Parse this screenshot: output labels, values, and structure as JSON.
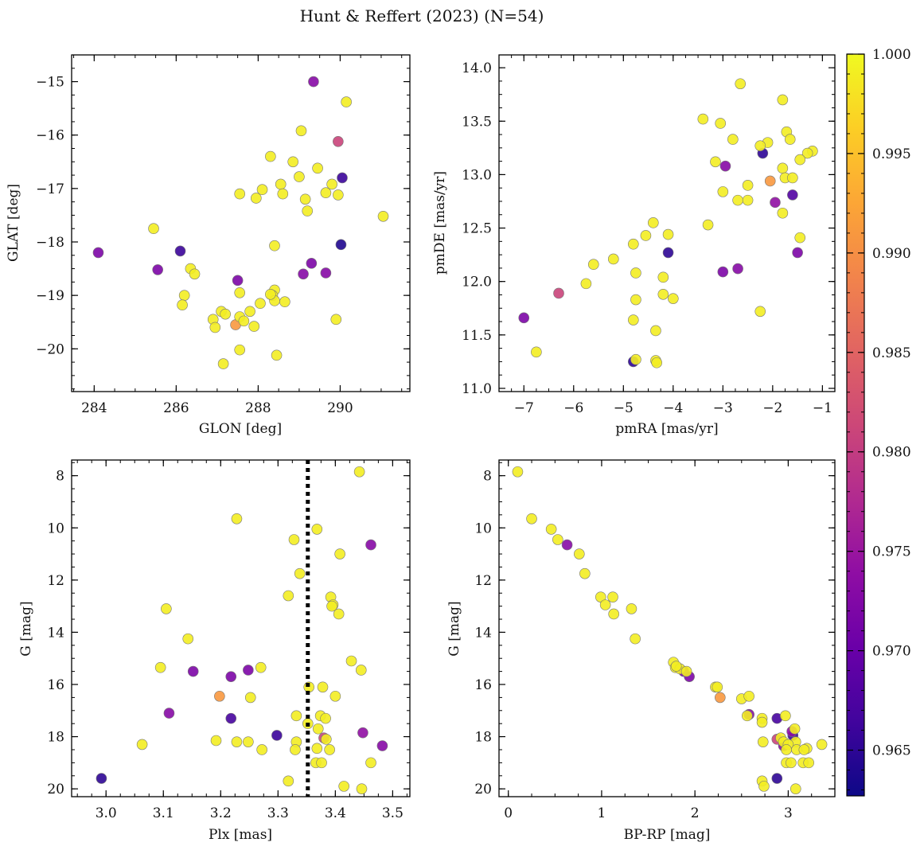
{
  "figure": {
    "title": "Hunt & Reffert (2023) (N=54)",
    "colorbar": {
      "colormap": "plasma",
      "vmin": 0.9627,
      "vmax": 1.0,
      "ticks": [
        "1.000",
        "0.995",
        "0.990",
        "0.985",
        "0.980",
        "0.975",
        "0.970",
        "0.965"
      ],
      "tick_values": [
        1.0,
        0.995,
        0.99,
        0.985,
        0.98,
        0.975,
        0.97,
        0.965
      ]
    },
    "colors": {
      "marker_edge": "#777777",
      "frame": "#000000",
      "vline": "#000000"
    }
  },
  "chart_data": [
    {
      "type": "scatter",
      "xlabel": "GLON [deg]",
      "ylabel": "GLAT [deg]",
      "xlim": [
        283.45,
        291.7
      ],
      "ylim": [
        -20.8,
        -14.5
      ],
      "y_inverted": false,
      "xticks": [
        284,
        286,
        288,
        290
      ],
      "xticklabels": [
        "284",
        "286",
        "288",
        "290"
      ],
      "yticks": [
        -15,
        -16,
        -17,
        -18,
        -19,
        -20
      ],
      "yticklabels": [
        "−15",
        "−16",
        "−17",
        "−18",
        "−19",
        "−20"
      ],
      "points": [
        [
          289.35,
          -15.0,
          0.973
        ],
        [
          290.15,
          -15.38,
          0.999
        ],
        [
          289.95,
          -16.12,
          0.981
        ],
        [
          289.05,
          -15.92,
          0.999
        ],
        [
          288.3,
          -16.4,
          0.999
        ],
        [
          288.85,
          -16.5,
          0.999
        ],
        [
          289.45,
          -16.62,
          0.999
        ],
        [
          289.0,
          -16.78,
          0.999
        ],
        [
          290.05,
          -16.8,
          0.966
        ],
        [
          288.55,
          -16.92,
          0.999
        ],
        [
          289.8,
          -16.92,
          0.999
        ],
        [
          287.55,
          -17.1,
          0.999
        ],
        [
          288.1,
          -17.02,
          0.999
        ],
        [
          288.6,
          -17.1,
          0.999
        ],
        [
          289.65,
          -17.08,
          0.999
        ],
        [
          289.95,
          -17.12,
          0.999
        ],
        [
          287.95,
          -17.18,
          0.999
        ],
        [
          289.15,
          -17.2,
          0.999
        ],
        [
          289.2,
          -17.42,
          0.999
        ],
        [
          291.05,
          -17.52,
          0.999
        ],
        [
          285.45,
          -17.75,
          0.999
        ],
        [
          290.02,
          -18.05,
          0.964
        ],
        [
          286.1,
          -18.17,
          0.966
        ],
        [
          284.1,
          -18.2,
          0.972
        ],
        [
          288.4,
          -18.07,
          0.999
        ],
        [
          285.55,
          -18.52,
          0.972
        ],
        [
          286.35,
          -18.5,
          0.999
        ],
        [
          286.45,
          -18.6,
          0.999
        ],
        [
          289.3,
          -18.4,
          0.972
        ],
        [
          289.1,
          -18.6,
          0.973
        ],
        [
          289.65,
          -18.58,
          0.973
        ],
        [
          287.5,
          -18.72,
          0.972
        ],
        [
          287.55,
          -18.95,
          0.999
        ],
        [
          288.4,
          -18.9,
          0.999
        ],
        [
          288.35,
          -19.0,
          0.999
        ],
        [
          288.4,
          -19.1,
          0.999
        ],
        [
          288.65,
          -19.12,
          0.999
        ],
        [
          286.2,
          -19.0,
          0.999
        ],
        [
          286.15,
          -19.18,
          0.999
        ],
        [
          288.05,
          -19.15,
          0.999
        ],
        [
          287.8,
          -19.3,
          0.999
        ],
        [
          287.1,
          -19.3,
          0.999
        ],
        [
          287.2,
          -19.35,
          0.999
        ],
        [
          287.55,
          -19.4,
          0.999
        ],
        [
          287.65,
          -19.48,
          0.999
        ],
        [
          286.9,
          -19.45,
          0.999
        ],
        [
          286.95,
          -19.6,
          0.999
        ],
        [
          287.45,
          -19.55,
          0.991
        ],
        [
          287.9,
          -19.58,
          0.999
        ],
        [
          289.9,
          -19.45,
          0.999
        ],
        [
          287.55,
          -20.02,
          0.999
        ],
        [
          288.45,
          -20.12,
          0.999
        ],
        [
          287.15,
          -20.28,
          0.999
        ],
        [
          288.3,
          -18.98,
          0.999
        ]
      ]
    },
    {
      "type": "scatter",
      "xlabel": "pmRA [mas/yr]",
      "ylabel": "pmDE [mas/yr]",
      "xlim": [
        -7.5,
        -0.75
      ],
      "ylim": [
        10.97,
        14.12
      ],
      "y_inverted": false,
      "xticks": [
        -7,
        -6,
        -5,
        -4,
        -3,
        -2,
        -1
      ],
      "xticklabels": [
        "−7",
        "−6",
        "−5",
        "−4",
        "−3",
        "−2",
        "−1"
      ],
      "yticks": [
        11.0,
        11.5,
        12.0,
        12.5,
        13.0,
        13.5,
        14.0
      ],
      "yticklabels": [
        "11.0",
        "11.5",
        "12.0",
        "12.5",
        "13.0",
        "13.5",
        "14.0"
      ],
      "points": [
        [
          -2.65,
          13.85,
          0.999
        ],
        [
          -1.8,
          13.7,
          0.999
        ],
        [
          -3.4,
          13.52,
          0.999
        ],
        [
          -3.05,
          13.48,
          0.999
        ],
        [
          -1.72,
          13.4,
          0.999
        ],
        [
          -1.65,
          13.33,
          0.999
        ],
        [
          -2.8,
          13.33,
          0.999
        ],
        [
          -2.1,
          13.3,
          0.999
        ],
        [
          -2.25,
          13.27,
          0.999
        ],
        [
          -1.2,
          13.22,
          0.999
        ],
        [
          -1.3,
          13.2,
          0.999
        ],
        [
          -2.2,
          13.2,
          0.965
        ],
        [
          -1.45,
          13.14,
          0.999
        ],
        [
          -3.15,
          13.12,
          0.999
        ],
        [
          -2.95,
          13.08,
          0.973
        ],
        [
          -1.8,
          13.06,
          0.999
        ],
        [
          -1.75,
          12.97,
          0.999
        ],
        [
          -1.6,
          12.97,
          0.999
        ],
        [
          -2.05,
          12.94,
          0.991
        ],
        [
          -2.5,
          12.9,
          0.999
        ],
        [
          -3.0,
          12.84,
          0.999
        ],
        [
          -1.6,
          12.81,
          0.968
        ],
        [
          -2.7,
          12.76,
          0.999
        ],
        [
          -2.5,
          12.76,
          0.999
        ],
        [
          -1.95,
          12.74,
          0.974
        ],
        [
          -1.8,
          12.64,
          0.999
        ],
        [
          -3.3,
          12.53,
          0.999
        ],
        [
          -4.4,
          12.55,
          0.999
        ],
        [
          -4.55,
          12.43,
          0.999
        ],
        [
          -4.1,
          12.44,
          0.999
        ],
        [
          -1.45,
          12.41,
          0.999
        ],
        [
          -4.8,
          12.35,
          0.999
        ],
        [
          -4.1,
          12.27,
          0.965
        ],
        [
          -1.5,
          12.27,
          0.972
        ],
        [
          -5.2,
          12.21,
          0.999
        ],
        [
          -5.6,
          12.16,
          0.999
        ],
        [
          -2.7,
          12.12,
          0.973
        ],
        [
          -3.0,
          12.09,
          0.972
        ],
        [
          -4.75,
          12.08,
          0.999
        ],
        [
          -4.2,
          12.04,
          0.999
        ],
        [
          -5.75,
          11.98,
          0.999
        ],
        [
          -6.3,
          11.89,
          0.981
        ],
        [
          -4.2,
          11.88,
          0.999
        ],
        [
          -4.0,
          11.84,
          0.999
        ],
        [
          -4.75,
          11.83,
          0.999
        ],
        [
          -2.25,
          11.72,
          0.999
        ],
        [
          -7.0,
          11.66,
          0.972
        ],
        [
          -4.8,
          11.64,
          0.999
        ],
        [
          -4.35,
          11.54,
          0.999
        ],
        [
          -6.75,
          11.34,
          0.999
        ],
        [
          -4.75,
          11.27,
          0.999
        ],
        [
          -4.35,
          11.26,
          0.999
        ],
        [
          -4.8,
          11.25,
          0.965
        ],
        [
          -4.33,
          11.24,
          0.999
        ]
      ]
    },
    {
      "type": "scatter",
      "xlabel": "Plx [mas]",
      "ylabel": "G [mag]",
      "xlim": [
        2.94,
        3.53
      ],
      "ylim": [
        20.3,
        7.4
      ],
      "y_inverted": true,
      "vline": 3.352,
      "xticks": [
        3.0,
        3.1,
        3.2,
        3.3,
        3.4,
        3.5
      ],
      "xticklabels": [
        "3.0",
        "3.1",
        "3.2",
        "3.3",
        "3.4",
        "3.5"
      ],
      "yticks": [
        8,
        10,
        12,
        14,
        16,
        18,
        20
      ],
      "yticklabels": [
        "8",
        "10",
        "12",
        "14",
        "16",
        "18",
        "20"
      ],
      "points": [
        [
          3.442,
          7.85,
          0.999
        ],
        [
          3.228,
          9.65,
          0.999
        ],
        [
          3.368,
          10.05,
          0.999
        ],
        [
          3.328,
          10.45,
          0.999
        ],
        [
          3.462,
          10.65,
          0.973
        ],
        [
          3.408,
          11.0,
          0.999
        ],
        [
          3.338,
          11.75,
          0.999
        ],
        [
          3.318,
          12.6,
          0.999
        ],
        [
          3.392,
          12.65,
          0.999
        ],
        [
          3.396,
          12.95,
          0.999
        ],
        [
          3.105,
          13.1,
          0.999
        ],
        [
          3.406,
          13.3,
          0.999
        ],
        [
          3.143,
          14.25,
          0.999
        ],
        [
          3.428,
          15.1,
          0.999
        ],
        [
          3.095,
          15.35,
          0.999
        ],
        [
          3.27,
          15.35,
          0.999
        ],
        [
          3.248,
          15.45,
          0.972
        ],
        [
          3.445,
          15.45,
          0.999
        ],
        [
          3.152,
          15.5,
          0.972
        ],
        [
          3.218,
          15.7,
          0.972
        ],
        [
          3.354,
          16.1,
          0.999
        ],
        [
          3.378,
          16.1,
          0.999
        ],
        [
          3.198,
          16.45,
          0.991
        ],
        [
          3.4,
          16.45,
          0.999
        ],
        [
          3.252,
          16.5,
          0.999
        ],
        [
          3.11,
          17.1,
          0.973
        ],
        [
          3.332,
          17.2,
          0.999
        ],
        [
          3.374,
          17.2,
          0.999
        ],
        [
          3.218,
          17.3,
          0.967
        ],
        [
          3.383,
          17.3,
          0.999
        ],
        [
          3.352,
          17.5,
          0.999
        ],
        [
          3.37,
          17.7,
          0.999
        ],
        [
          3.448,
          17.85,
          0.974
        ],
        [
          3.298,
          17.95,
          0.966
        ],
        [
          3.38,
          18.05,
          0.981
        ],
        [
          3.384,
          18.1,
          0.999
        ],
        [
          3.192,
          18.15,
          0.999
        ],
        [
          3.228,
          18.2,
          0.999
        ],
        [
          3.248,
          18.2,
          0.999
        ],
        [
          3.332,
          18.2,
          0.999
        ],
        [
          3.063,
          18.3,
          0.999
        ],
        [
          3.482,
          18.35,
          0.973
        ],
        [
          3.33,
          18.5,
          0.999
        ],
        [
          3.272,
          18.5,
          0.999
        ],
        [
          3.368,
          18.45,
          0.999
        ],
        [
          3.39,
          18.5,
          0.999
        ],
        [
          3.366,
          19.0,
          0.999
        ],
        [
          3.376,
          19.0,
          0.999
        ],
        [
          3.462,
          19.0,
          0.999
        ],
        [
          2.992,
          19.6,
          0.965
        ],
        [
          3.318,
          19.7,
          0.999
        ],
        [
          3.415,
          19.9,
          0.999
        ],
        [
          3.446,
          20.0,
          0.999
        ],
        [
          3.394,
          13.0,
          0.999
        ]
      ]
    },
    {
      "type": "scatter",
      "xlabel": "BP-RP [mag]",
      "ylabel": "G [mag]",
      "xlim": [
        -0.1,
        3.5
      ],
      "ylim": [
        20.3,
        7.4
      ],
      "y_inverted": true,
      "xticks": [
        0,
        1,
        2,
        3
      ],
      "xticklabels": [
        "0",
        "1",
        "2",
        "3"
      ],
      "yticks": [
        8,
        10,
        12,
        14,
        16,
        18,
        20
      ],
      "yticklabels": [
        "8",
        "10",
        "12",
        "14",
        "16",
        "18",
        "20"
      ],
      "points": [
        [
          0.1,
          7.85,
          0.999
        ],
        [
          0.25,
          9.65,
          0.999
        ],
        [
          0.46,
          10.05,
          0.999
        ],
        [
          0.53,
          10.45,
          0.999
        ],
        [
          0.63,
          10.65,
          0.973
        ],
        [
          0.76,
          11.0,
          0.999
        ],
        [
          0.82,
          11.75,
          0.999
        ],
        [
          0.99,
          12.65,
          0.999
        ],
        [
          1.12,
          12.65,
          0.999
        ],
        [
          1.04,
          12.95,
          0.999
        ],
        [
          1.32,
          13.1,
          0.999
        ],
        [
          1.13,
          13.3,
          0.999
        ],
        [
          1.36,
          14.25,
          0.999
        ],
        [
          1.77,
          15.15,
          0.999
        ],
        [
          1.79,
          15.35,
          0.999
        ],
        [
          1.84,
          15.4,
          0.999
        ],
        [
          1.88,
          15.5,
          0.972
        ],
        [
          1.91,
          15.5,
          0.999
        ],
        [
          1.94,
          15.7,
          0.972
        ],
        [
          2.22,
          16.1,
          0.999
        ],
        [
          2.24,
          16.1,
          0.999
        ],
        [
          2.27,
          16.5,
          0.991
        ],
        [
          2.5,
          16.55,
          0.999
        ],
        [
          2.58,
          16.45,
          0.999
        ],
        [
          2.58,
          17.15,
          0.973
        ],
        [
          2.56,
          17.2,
          0.999
        ],
        [
          2.72,
          17.3,
          0.999
        ],
        [
          2.72,
          17.45,
          0.999
        ],
        [
          2.88,
          17.3,
          0.967
        ],
        [
          3.07,
          17.7,
          0.999
        ],
        [
          2.97,
          17.2,
          0.999
        ],
        [
          3.04,
          17.8,
          0.974
        ],
        [
          3.05,
          17.95,
          0.966
        ],
        [
          2.88,
          18.1,
          0.981
        ],
        [
          2.92,
          18.05,
          0.999
        ],
        [
          2.73,
          18.2,
          0.999
        ],
        [
          2.95,
          18.2,
          0.999
        ],
        [
          3.08,
          18.2,
          0.999
        ],
        [
          3.0,
          18.3,
          0.999
        ],
        [
          3.36,
          18.3,
          0.999
        ],
        [
          2.95,
          18.35,
          0.973
        ],
        [
          3.2,
          18.45,
          0.999
        ],
        [
          3.09,
          18.5,
          0.999
        ],
        [
          3.17,
          18.5,
          0.999
        ],
        [
          2.98,
          19.0,
          0.999
        ],
        [
          3.03,
          19.0,
          0.999
        ],
        [
          3.16,
          19.0,
          0.999
        ],
        [
          3.22,
          19.0,
          0.999
        ],
        [
          2.88,
          19.6,
          0.965
        ],
        [
          2.72,
          19.7,
          0.999
        ],
        [
          2.74,
          19.9,
          0.999
        ],
        [
          3.08,
          20.0,
          0.999
        ],
        [
          2.98,
          18.5,
          0.999
        ],
        [
          1.8,
          15.3,
          0.999
        ]
      ]
    }
  ]
}
